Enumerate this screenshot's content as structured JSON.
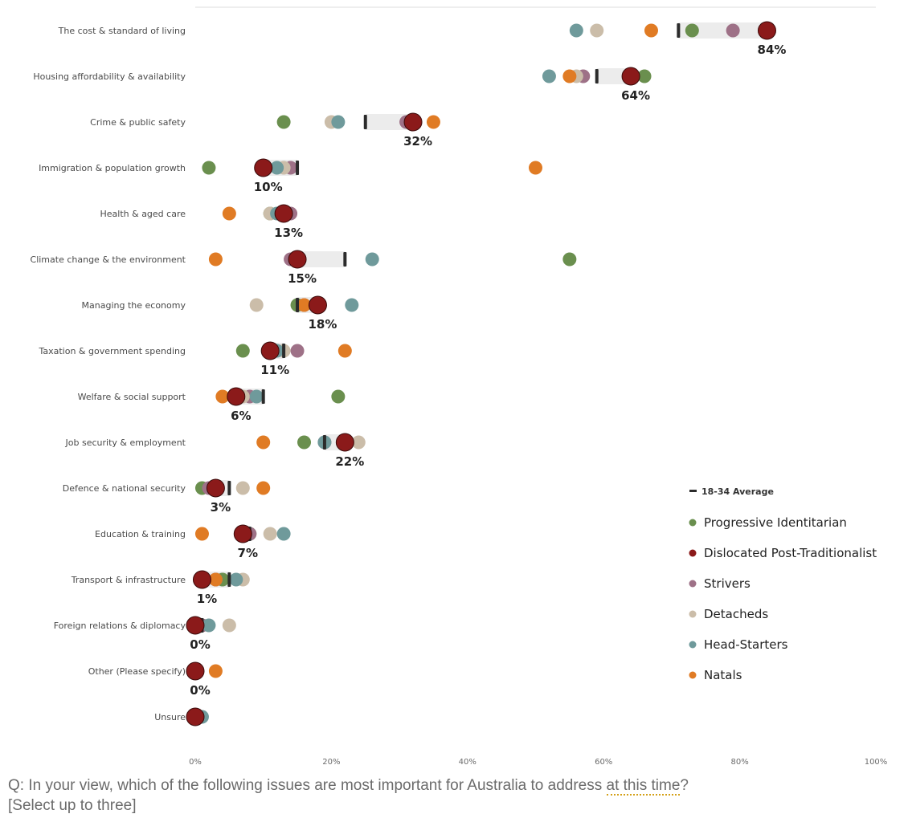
{
  "chart_data": {
    "type": "dot",
    "categories": [
      "The cost & standard of living",
      "Housing affordability & availability",
      "Crime & public safety",
      "Immigration & population growth",
      "Health & aged care",
      "Climate change & the environment",
      "Managing the economy",
      "Taxation & government spending",
      "Welfare & social support",
      "Job security & employment",
      "Defence & national security",
      "Education & training",
      "Transport & infrastructure",
      "Foreign relations & diplomacy",
      "Other (Please specify)",
      "Unsure"
    ],
    "x_ticks": [
      "0%",
      "20%",
      "40%",
      "60%",
      "80%",
      "100%"
    ],
    "xlim": [
      0,
      100
    ],
    "average": {
      "name": "18-34 Average",
      "values": [
        71,
        59,
        25,
        15,
        13,
        22,
        15,
        13,
        10,
        19,
        5,
        8,
        5,
        1,
        0,
        0
      ]
    },
    "series": [
      {
        "name": "Progressive Identitarian",
        "color": "#6a8f4e",
        "values": [
          73,
          66,
          13,
          2,
          11,
          55,
          15,
          7,
          21,
          16,
          1,
          8,
          4,
          1,
          0,
          0
        ]
      },
      {
        "name": "Strivers",
        "color": "#9e7187",
        "values": [
          79,
          57,
          31,
          14,
          14,
          14,
          16,
          15,
          8,
          19,
          2,
          8,
          3,
          1,
          0,
          0
        ]
      },
      {
        "name": "Detacheds",
        "color": "#cbbda9",
        "values": [
          59,
          56,
          20,
          13,
          11,
          15,
          9,
          13,
          7,
          24,
          7,
          11,
          7,
          5,
          0,
          0
        ]
      },
      {
        "name": "Head-Starters",
        "color": "#6f9a9b",
        "values": [
          56,
          52,
          21,
          12,
          12,
          26,
          23,
          12,
          9,
          19,
          3,
          13,
          6,
          2,
          0,
          1
        ]
      },
      {
        "name": "Natals",
        "color": "#e07b24",
        "values": [
          67,
          55,
          35,
          50,
          5,
          3,
          16,
          22,
          4,
          10,
          10,
          1,
          3,
          0,
          3,
          0
        ]
      },
      {
        "name": "Dislocated Post-Traditionalist",
        "color": "#8b1a1a",
        "values": [
          84,
          64,
          32,
          10,
          13,
          15,
          18,
          11,
          6,
          22,
          3,
          7,
          1,
          0,
          0,
          0
        ]
      }
    ],
    "value_labels": [
      "84%",
      "64%",
      "32%",
      "10%",
      "13%",
      "15%",
      "18%",
      "11%",
      "6%",
      "22%",
      "3%",
      "7%",
      "1%",
      "0%",
      "0%",
      ""
    ]
  },
  "legend": {
    "average_label": "18-34 Average",
    "items": [
      {
        "label": "Progressive Identitarian",
        "color": "#6a8f4e"
      },
      {
        "label": "Dislocated Post-Traditionalist",
        "color": "#8b1a1a"
      },
      {
        "label": "Strivers",
        "color": "#9e7187"
      },
      {
        "label": "Detacheds",
        "color": "#cbbda9"
      },
      {
        "label": "Head-Starters",
        "color": "#6f9a9b"
      },
      {
        "label": "Natals",
        "color": "#e07b24"
      }
    ]
  },
  "question": {
    "part1": "Q: In your view, which of the following issues are most important for Australia to address ",
    "part2": "at this time",
    "part3": "?",
    "line2": "[Select up to three]"
  }
}
